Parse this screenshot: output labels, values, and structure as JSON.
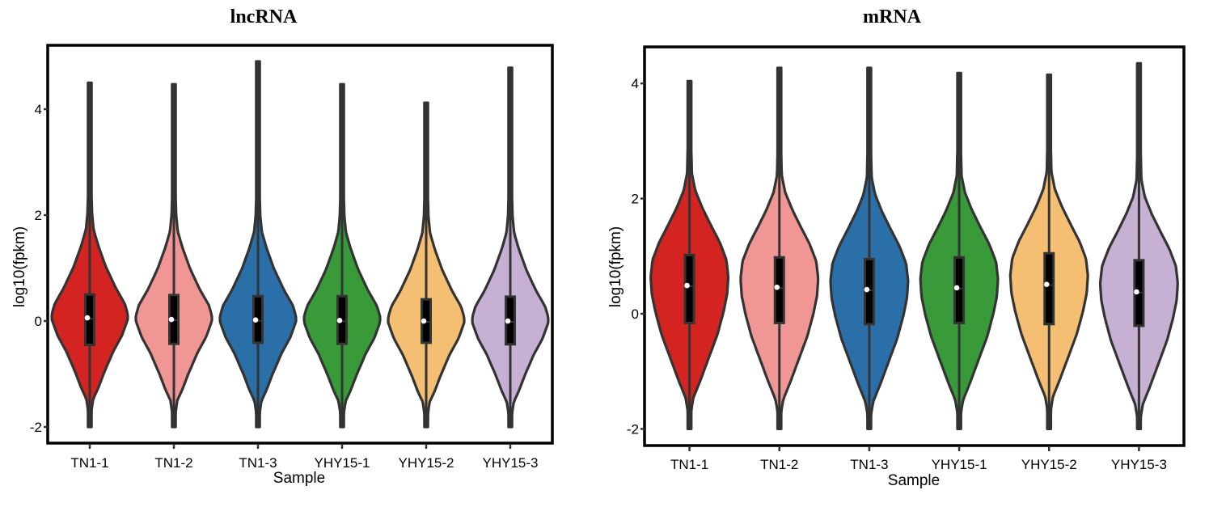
{
  "chart_data": [
    {
      "type": "violin",
      "title": "lncRNA",
      "xlabel": "Sample",
      "ylabel": "log10(fpkm)",
      "ylim": [
        -2.3,
        5.2
      ],
      "yticks": [
        -2,
        0,
        2,
        4
      ],
      "ytick_labels": [
        "-2",
        "0",
        "2",
        "4"
      ],
      "grid": false,
      "categories": [
        "TN1-1",
        "TN1-2",
        "TN1-3",
        "YHY15-1",
        "YHY15-2",
        "YHY15-3"
      ],
      "colors": [
        "#d32422",
        "#f09695",
        "#2a6fa8",
        "#389a38",
        "#f4be73",
        "#c6b0d4"
      ],
      "series": [
        {
          "name": "TN1-1",
          "min": -2.0,
          "q1": -0.45,
          "median": 0.06,
          "q3": 0.5,
          "max": 4.5
        },
        {
          "name": "TN1-2",
          "min": -2.0,
          "q1": -0.43,
          "median": 0.03,
          "q3": 0.49,
          "max": 4.47
        },
        {
          "name": "TN1-3",
          "min": -2.0,
          "q1": -0.41,
          "median": 0.02,
          "q3": 0.47,
          "max": 4.9
        },
        {
          "name": "YHY15-1",
          "min": -2.0,
          "q1": -0.43,
          "median": 0.01,
          "q3": 0.47,
          "max": 4.47
        },
        {
          "name": "YHY15-2",
          "min": -2.0,
          "q1": -0.41,
          "median": 0.0,
          "q3": 0.41,
          "max": 4.12
        },
        {
          "name": "YHY15-3",
          "min": -2.0,
          "q1": -0.44,
          "median": 0.0,
          "q3": 0.46,
          "max": 4.78
        }
      ],
      "density_profile": {
        "y": [
          -2.0,
          -1.7,
          -1.5,
          -1.3,
          -1.0,
          -0.6,
          -0.3,
          0.0,
          0.1,
          0.3,
          0.6,
          1.0,
          1.4,
          1.7,
          2.0,
          2.5,
          3.0,
          4.0,
          5.0
        ],
        "width": [
          0.02,
          0.05,
          0.09,
          0.22,
          0.38,
          0.62,
          0.85,
          1.0,
          1.0,
          0.92,
          0.68,
          0.42,
          0.22,
          0.1,
          0.06,
          0.04,
          0.03,
          0.02,
          0.02
        ]
      }
    },
    {
      "type": "violin",
      "title": "mRNA",
      "xlabel": "Sample",
      "ylabel": "log10(fpkm)",
      "ylim": [
        -2.3,
        4.65
      ],
      "yticks": [
        -2,
        0,
        2,
        4
      ],
      "ytick_labels": [
        "-2",
        "0",
        "2",
        "4"
      ],
      "grid": false,
      "categories": [
        "TN1-1",
        "TN1-2",
        "TN1-3",
        "YHY15-1",
        "YHY15-2",
        "YHY15-3"
      ],
      "colors": [
        "#d32422",
        "#f09695",
        "#2a6fa8",
        "#389a38",
        "#f4be73",
        "#c6b0d4"
      ],
      "series": [
        {
          "name": "TN1-1",
          "min": -2.0,
          "q1": -0.16,
          "median": 0.49,
          "q3": 1.02,
          "max": 4.04
        },
        {
          "name": "TN1-2",
          "min": -2.0,
          "q1": -0.16,
          "median": 0.46,
          "q3": 0.98,
          "max": 4.27
        },
        {
          "name": "TN1-3",
          "min": -2.0,
          "q1": -0.18,
          "median": 0.42,
          "q3": 0.95,
          "max": 4.27
        },
        {
          "name": "YHY15-1",
          "min": -2.0,
          "q1": -0.16,
          "median": 0.45,
          "q3": 0.98,
          "max": 4.18
        },
        {
          "name": "YHY15-2",
          "min": -2.0,
          "q1": -0.18,
          "median": 0.51,
          "q3": 1.05,
          "max": 4.15
        },
        {
          "name": "YHY15-3",
          "min": -2.0,
          "q1": -0.21,
          "median": 0.38,
          "q3": 0.93,
          "max": 4.35
        }
      ],
      "density_profile": {
        "y": [
          -2.0,
          -1.7,
          -1.5,
          -1.2,
          -0.8,
          -0.4,
          0.0,
          0.3,
          0.6,
          0.9,
          1.2,
          1.5,
          1.8,
          2.1,
          2.4,
          3.0,
          3.5,
          4.5
        ],
        "width": [
          0.02,
          0.05,
          0.1,
          0.28,
          0.5,
          0.72,
          0.88,
          0.97,
          1.0,
          0.95,
          0.78,
          0.55,
          0.33,
          0.15,
          0.06,
          0.04,
          0.03,
          0.02
        ]
      }
    }
  ]
}
